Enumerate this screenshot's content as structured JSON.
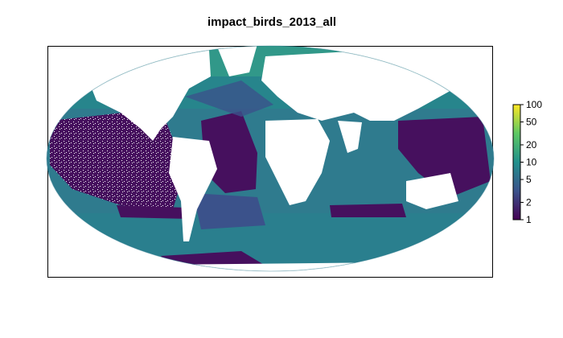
{
  "title": "impact_birds_2013_all",
  "legend": {
    "scale": "log",
    "range": [
      1,
      100
    ],
    "ticks": [
      {
        "label": "100",
        "value": 100
      },
      {
        "label": "50",
        "value": 50
      },
      {
        "label": "20",
        "value": 20
      },
      {
        "label": "10",
        "value": 10
      },
      {
        "label": "5",
        "value": 5
      },
      {
        "label": "2",
        "value": 2
      },
      {
        "label": "1",
        "value": 1
      }
    ],
    "colors": [
      "#440154",
      "#3b528b",
      "#21908c",
      "#5dc863",
      "#fde725"
    ]
  },
  "palette": {
    "low": "#46105e",
    "low_mid": "#3b528b",
    "mid": "#2f7b8e",
    "teal": "#21908c",
    "high": "#3aa887",
    "land": "#ffffff"
  }
}
